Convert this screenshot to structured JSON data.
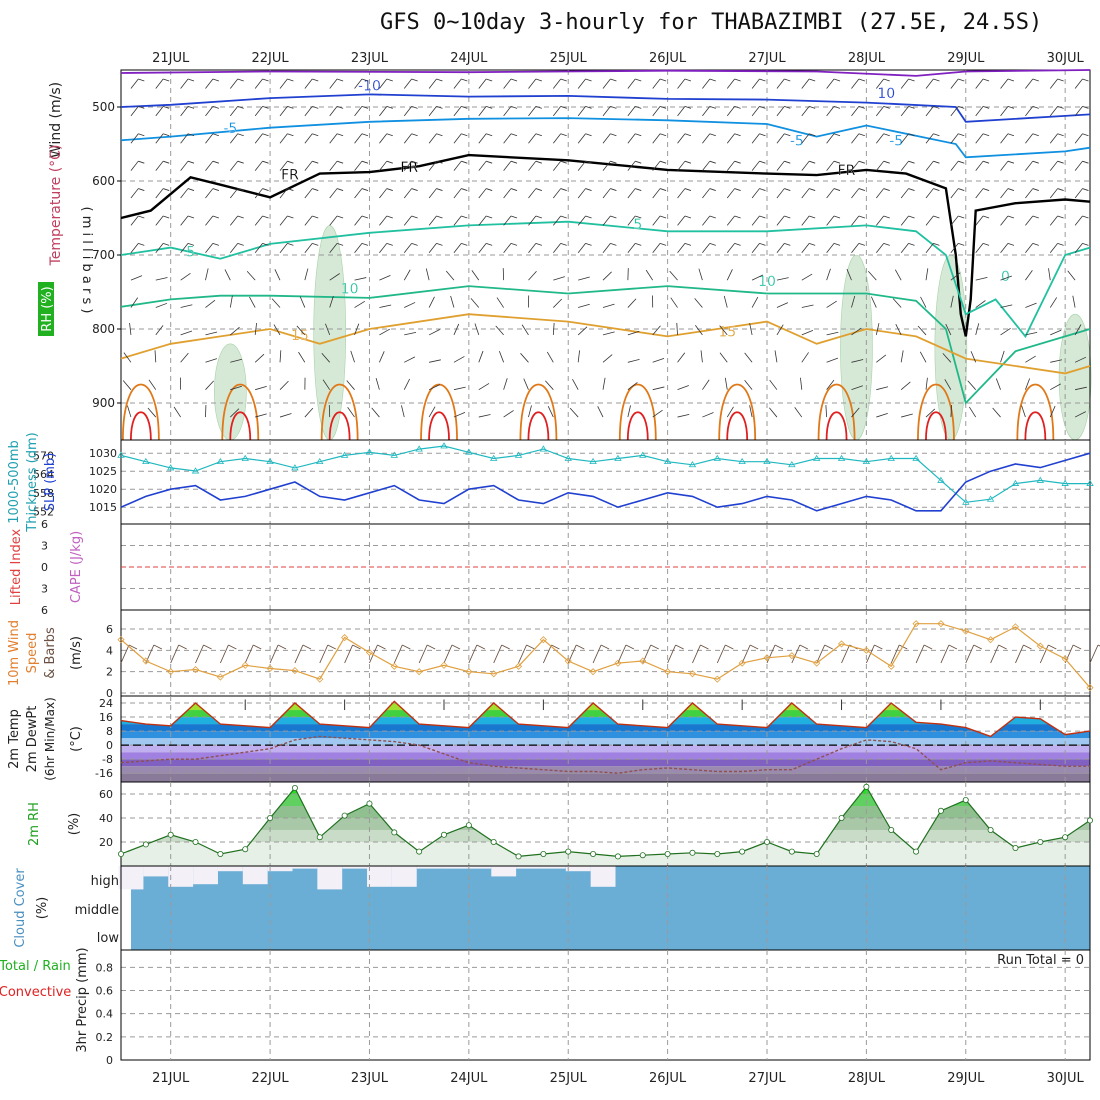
{
  "title": "GFS 0~10day 3-hourly for THABAZIMBI (27.5E, 24.5S)",
  "colors": {
    "grid": "#9a9a9a",
    "temp_warm": "#e07818",
    "temp_hot": "#e02020",
    "temp_mild": "#e0a030",
    "temp_cool": "#20c0a0",
    "temp_cold": "#1090e0",
    "temp_vcold": "#2040d0",
    "freezing": "#000000",
    "rh_fill": "#cfe5cf",
    "thickness": "#20b8c0",
    "slp": "#2040d0",
    "lifted_index_zero": "#e04040",
    "wind10": "#e0a040",
    "rh2m": "#30a030",
    "cloud": "#6aaed6",
    "cloud_clear": "#f4f0f8"
  },
  "chart_data": [
    {
      "type": "contour",
      "panel": "upper-air",
      "title": "GFS 0~10day 3-hourly for THABAZIMBI (27.5E, 24.5S)",
      "xlabels": [
        "21JUL",
        "22JUL",
        "23JUL",
        "24JUL",
        "25JUL",
        "26JUL",
        "27JUL",
        "28JUL",
        "29JUL",
        "30JUL"
      ],
      "x_start": 20.5,
      "x_end": 30.25,
      "ylabel": "( m i l l i b a r s )",
      "side_labels": [
        "Wind (m/s)",
        "Temperature (°C)",
        "RH (%)"
      ],
      "yticks": [
        500,
        600,
        700,
        800,
        900
      ],
      "ylim": [
        450,
        950
      ],
      "contour_labels": [
        "-10",
        "10",
        "-5",
        "-5",
        "FR",
        "FR",
        "FR",
        "-5",
        "5",
        "5",
        "10",
        "10",
        "15",
        "15",
        "0"
      ],
      "isotherms": [
        {
          "name": "-15",
          "color": "#8020c0",
          "x": [
            20.5,
            22,
            24,
            26,
            27.5,
            28.5,
            29,
            30.25
          ],
          "y": [
            454,
            452,
            453,
            451,
            452,
            458,
            452,
            450
          ]
        },
        {
          "name": "-10",
          "color": "#2040d0",
          "x": [
            20.5,
            21,
            22,
            23,
            24,
            25,
            26,
            27,
            28,
            28.9,
            29,
            30,
            30.25
          ],
          "y": [
            500,
            497,
            488,
            483,
            486,
            485,
            489,
            490,
            494,
            500,
            520,
            512,
            510
          ]
        },
        {
          "name": "-5",
          "color": "#1090e0",
          "x": [
            20.5,
            21,
            22,
            23,
            24,
            25,
            26,
            27,
            27.5,
            28,
            28.9,
            29,
            30,
            30.25
          ],
          "y": [
            545,
            540,
            528,
            520,
            516,
            515,
            518,
            523,
            540,
            525,
            550,
            568,
            560,
            555
          ]
        },
        {
          "name": "FR",
          "color": "#000000",
          "x": [
            20.5,
            20.8,
            21.2,
            21.5,
            22,
            22.5,
            23,
            23.5,
            24,
            25,
            26,
            27,
            27.5,
            28,
            28.4,
            28.8,
            28.9,
            28.95,
            29,
            29.05,
            29.1,
            29.5,
            30,
            30.25
          ],
          "y": [
            650,
            640,
            595,
            605,
            622,
            590,
            588,
            580,
            565,
            572,
            585,
            590,
            592,
            585,
            590,
            610,
            700,
            780,
            810,
            760,
            640,
            630,
            625,
            628
          ]
        },
        {
          "name": "5",
          "color": "#20c0a0",
          "x": [
            20.5,
            21,
            21.5,
            22,
            23,
            24,
            25,
            26,
            27,
            28,
            28.5,
            28.8,
            29,
            29.3,
            29.6,
            30,
            30.25
          ],
          "y": [
            700,
            690,
            705,
            685,
            670,
            660,
            655,
            668,
            668,
            660,
            668,
            700,
            780,
            760,
            810,
            700,
            690
          ]
        },
        {
          "name": "10",
          "color": "#20b888",
          "x": [
            20.5,
            21,
            21.5,
            22,
            23,
            24,
            25,
            26,
            27,
            28,
            28.5,
            28.8,
            29,
            29.5,
            30,
            30.25
          ],
          "y": [
            770,
            760,
            755,
            755,
            758,
            742,
            752,
            742,
            752,
            752,
            762,
            800,
            900,
            830,
            810,
            800
          ]
        },
        {
          "name": "15",
          "color": "#e0a030",
          "x": [
            20.5,
            21,
            21.5,
            22,
            22.5,
            23,
            24,
            25,
            26,
            27,
            27.5,
            28,
            28.5,
            29,
            30,
            30.25
          ],
          "y": [
            840,
            820,
            810,
            800,
            820,
            800,
            780,
            790,
            810,
            790,
            820,
            800,
            810,
            840,
            860,
            850
          ]
        }
      ],
      "rh_regions": [
        {
          "x": 21.6,
          "y_top": 820,
          "y_bot": 950
        },
        {
          "x": 22.6,
          "y_top": 660,
          "y_bot": 950
        },
        {
          "x": 27.9,
          "y_top": 700,
          "y_bot": 950
        },
        {
          "x": 28.85,
          "y_top": 700,
          "y_bot": 950
        },
        {
          "x": 30.1,
          "y_top": 780,
          "y_bot": 950
        }
      ]
    },
    {
      "type": "line",
      "panel": "thickness-slp",
      "side_labels": [
        "1000-500mb",
        "Thickness (dm)",
        "SLP (mb)"
      ],
      "left_yticks": [
        552,
        558,
        564,
        570
      ],
      "right_yticks": [
        1015,
        1020,
        1025,
        1030
      ],
      "series": [
        {
          "name": "Thickness (dm)",
          "axis": "left",
          "unit": "dm",
          "color": "#20b8c0",
          "x": [
            20.5,
            20.75,
            21,
            21.25,
            21.5,
            21.75,
            22,
            22.25,
            22.5,
            22.75,
            23,
            23.25,
            23.5,
            23.75,
            24,
            24.25,
            24.5,
            24.75,
            25,
            25.25,
            25.5,
            25.75,
            26,
            26.25,
            26.5,
            26.75,
            27,
            27.25,
            27.5,
            27.75,
            28,
            28.25,
            28.5,
            28.75,
            29,
            29.25,
            29.5,
            29.75,
            30,
            30.25
          ],
          "values": [
            570,
            568,
            566,
            565,
            568,
            569,
            568,
            566,
            568,
            570,
            571,
            570,
            572,
            573,
            571,
            569,
            570,
            572,
            569,
            568,
            569,
            570,
            568,
            567,
            569,
            568,
            568,
            567,
            569,
            569,
            568,
            569,
            569,
            562,
            555,
            556,
            561,
            562,
            561,
            561
          ]
        },
        {
          "name": "SLP (mb)",
          "axis": "right",
          "unit": "mb",
          "color": "#2040d0",
          "x": [
            20.5,
            20.75,
            21,
            21.25,
            21.5,
            21.75,
            22,
            22.25,
            22.5,
            22.75,
            23,
            23.25,
            23.5,
            23.75,
            24,
            24.25,
            24.5,
            24.75,
            25,
            25.25,
            25.5,
            25.75,
            26,
            26.25,
            26.5,
            26.75,
            27,
            27.25,
            27.5,
            27.75,
            28,
            28.25,
            28.5,
            28.75,
            29,
            29.25,
            29.5,
            29.75,
            30,
            30.25
          ],
          "values": [
            1015,
            1018,
            1020,
            1021,
            1017,
            1018,
            1020,
            1022,
            1018,
            1017,
            1019,
            1021,
            1017,
            1016,
            1020,
            1021,
            1017,
            1016,
            1019,
            1018,
            1015,
            1017,
            1019,
            1018,
            1015,
            1016,
            1018,
            1017,
            1014,
            1016,
            1018,
            1017,
            1014,
            1014,
            1022,
            1025,
            1027,
            1026,
            1028,
            1030
          ]
        }
      ]
    },
    {
      "type": "line",
      "panel": "cape-li",
      "side_labels": [
        "Lifted Index",
        "CAPE (J/kg)"
      ],
      "left_yticks": [
        -6,
        -3,
        0,
        3,
        6
      ],
      "series": [
        {
          "name": "Lifted Index",
          "values": [],
          "x": []
        }
      ]
    },
    {
      "type": "line",
      "panel": "wind10m",
      "side_labels": [
        "10m Wind",
        "Speed",
        "& Barbs",
        "(m/s)"
      ],
      "yticks": [
        0,
        2,
        4,
        6
      ],
      "ylim": [
        0,
        7.5
      ],
      "series": [
        {
          "name": "10m Wind Speed",
          "unit": "m/s",
          "color": "#e0a040",
          "x": [
            20.5,
            20.75,
            21,
            21.25,
            21.5,
            21.75,
            22,
            22.25,
            22.5,
            22.75,
            23,
            23.25,
            23.5,
            23.75,
            24,
            24.25,
            24.5,
            24.75,
            25,
            25.25,
            25.5,
            25.75,
            26,
            26.25,
            26.5,
            26.75,
            27,
            27.25,
            27.5,
            27.75,
            28,
            28.25,
            28.5,
            28.75,
            29,
            29.25,
            29.5,
            29.75,
            30,
            30.25
          ],
          "values": [
            5,
            3,
            2,
            2.2,
            1.5,
            2.6,
            2.3,
            2.1,
            1.3,
            5.2,
            3.8,
            2.5,
            2,
            2.6,
            2,
            1.8,
            2.5,
            5,
            3,
            2,
            2.8,
            3,
            2,
            1.8,
            1.3,
            2.8,
            3.3,
            3.5,
            2.8,
            4.6,
            4,
            2.5,
            6.5,
            6.5,
            5.8,
            5,
            6.2,
            4.4,
            3.2,
            0.5
          ]
        }
      ]
    },
    {
      "type": "line",
      "panel": "temp2m",
      "side_labels": [
        "2m Temp",
        "2m DewPt",
        "(6hr Min/Max)",
        "(°C)"
      ],
      "yticks": [
        -16,
        -8,
        0,
        8,
        16,
        24
      ],
      "ylim": [
        -21,
        28
      ],
      "series": [
        {
          "name": "2m Temp",
          "unit": "°C",
          "color": "#c03010",
          "x": [
            20.5,
            20.75,
            21,
            21.25,
            21.5,
            21.75,
            22,
            22.25,
            22.5,
            22.75,
            23,
            23.25,
            23.5,
            23.75,
            24,
            24.25,
            24.5,
            24.75,
            25,
            25.25,
            25.5,
            25.75,
            26,
            26.25,
            26.5,
            26.75,
            27,
            27.25,
            27.5,
            27.75,
            28,
            28.25,
            28.5,
            28.75,
            29,
            29.25,
            29.5,
            29.75,
            30,
            30.25
          ],
          "values": [
            14,
            12,
            11,
            24,
            12,
            11,
            10,
            24,
            12,
            11,
            10,
            25,
            12,
            11,
            10,
            24,
            12,
            11,
            10,
            24,
            12,
            11,
            10,
            24,
            12,
            11,
            10,
            24,
            12,
            11,
            10,
            24,
            13,
            12,
            10,
            5,
            16,
            15,
            6,
            8
          ]
        },
        {
          "name": "2m DewPt",
          "unit": "°C",
          "color": "#905050",
          "x": [
            20.5,
            20.75,
            21,
            21.25,
            21.5,
            21.75,
            22,
            22.25,
            22.5,
            22.75,
            23,
            23.25,
            23.5,
            23.75,
            24,
            24.25,
            24.5,
            24.75,
            25,
            25.25,
            25.5,
            25.75,
            26,
            26.25,
            26.5,
            26.75,
            27,
            27.25,
            27.5,
            27.75,
            28,
            28.25,
            28.5,
            28.75,
            29,
            29.25,
            29.5,
            29.75,
            30,
            30.25
          ],
          "values": [
            -10,
            -9,
            -8,
            -8,
            -6,
            -4,
            -2,
            3,
            5,
            4,
            3,
            2,
            0,
            -5,
            -10,
            -12,
            -13,
            -14,
            -15,
            -15,
            -16,
            -14,
            -13,
            -14,
            -15,
            -15,
            -14,
            -14,
            -8,
            -2,
            3,
            2,
            -2,
            -14,
            -10,
            -9,
            -10,
            -11,
            -12,
            -12
          ]
        }
      ]
    },
    {
      "type": "area",
      "panel": "rh2m",
      "side_labels": [
        "2m RH",
        "(%)"
      ],
      "yticks": [
        20,
        40,
        60
      ],
      "ylim": [
        0,
        70
      ],
      "series": [
        {
          "name": "2m RH",
          "unit": "%",
          "color": "#30a030",
          "x": [
            20.5,
            20.75,
            21,
            21.25,
            21.5,
            21.75,
            22,
            22.25,
            22.5,
            22.75,
            23,
            23.25,
            23.5,
            23.75,
            24,
            24.25,
            24.5,
            24.75,
            25,
            25.25,
            25.5,
            25.75,
            26,
            26.25,
            26.5,
            26.75,
            27,
            27.25,
            27.5,
            27.75,
            28,
            28.25,
            28.5,
            28.75,
            29,
            29.25,
            29.5,
            29.75,
            30,
            30.25
          ],
          "values": [
            10,
            18,
            26,
            20,
            10,
            14,
            40,
            65,
            24,
            42,
            52,
            28,
            12,
            26,
            34,
            20,
            8,
            10,
            12,
            10,
            8,
            9,
            10,
            11,
            10,
            12,
            20,
            12,
            10,
            40,
            66,
            30,
            12,
            46,
            55,
            30,
            15,
            20,
            24,
            38
          ]
        }
      ]
    },
    {
      "type": "bar",
      "panel": "cloud-cover",
      "side_labels": [
        "Cloud Cover",
        "(%)"
      ],
      "categories": [
        "high",
        "middle",
        "low"
      ],
      "x": [
        20.5,
        20.75,
        21,
        21.25,
        21.5,
        21.75,
        22,
        22.25,
        22.5,
        22.75,
        23,
        23.25,
        23.5,
        23.75,
        24,
        24.25,
        24.5,
        24.75,
        25,
        25.25,
        25.5,
        25.75,
        26,
        26.25,
        26.5,
        26.75,
        27,
        27.25,
        27.5,
        27.75,
        28,
        28.25,
        28.5,
        28.75,
        29,
        29.25,
        29.5,
        29.75,
        30,
        30.25
      ],
      "high_clear_fraction": [
        0.9,
        0.4,
        0.8,
        0.7,
        0.2,
        0.7,
        0.2,
        0.1,
        0.9,
        0.1,
        0.8,
        0.8,
        0.1,
        0.1,
        0.1,
        0.4,
        0.1,
        0.1,
        0.2,
        0.8,
        0,
        0,
        0,
        0,
        0,
        0,
        0,
        0,
        0,
        0,
        0,
        0,
        0,
        0,
        0,
        0,
        0,
        0,
        0,
        0
      ]
    },
    {
      "type": "bar",
      "panel": "precip",
      "side_labels": [
        "Total / Rain",
        "Convective",
        "3hr Precip (mm)"
      ],
      "annotation": "Run Total = 0",
      "yticks": [
        0,
        0.2,
        0.4,
        0.6,
        0.8
      ],
      "ylim": [
        0,
        0.95
      ],
      "values": []
    }
  ]
}
